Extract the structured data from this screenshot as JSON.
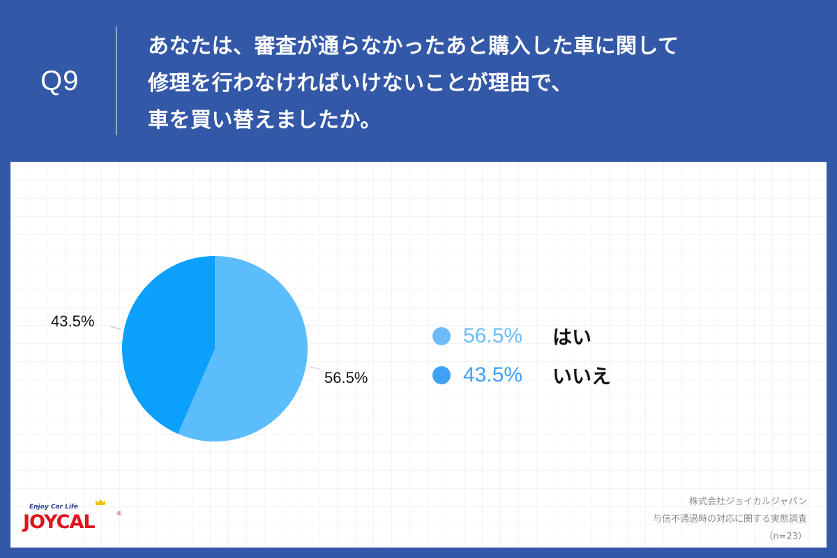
{
  "header": {
    "question_number": "Q9",
    "question_lines": [
      "あなたは、審査が通らなかったあと購入した車に関して",
      "修理を行わなければいけないことが理由で、",
      "車を買い替えましたか。"
    ]
  },
  "chart_data": {
    "type": "pie",
    "title": "あなたは、審査が通らなかったあと購入した車に関して修理を行わなければいけないことが理由で、車を買い替えましたか。",
    "categories": [
      "はい",
      "いいえ"
    ],
    "values": [
      56.5,
      43.5
    ],
    "unit": "%",
    "colors": [
      "#5bbdfb",
      "#0aa0fc"
    ],
    "start_angle": "12 o'clock, clockwise",
    "data_labels": [
      "56.5%",
      "43.5%"
    ],
    "legend_position": "right",
    "n": 23
  },
  "pie_labels": {
    "yes": "56.5%",
    "no": "43.5%"
  },
  "legend": [
    {
      "pct": "56.5%",
      "label": "はい",
      "dot_color": "#6cbcf8",
      "pct_color": "#6cbcf8"
    },
    {
      "pct": "43.5%",
      "label": "いいえ",
      "dot_color": "#3fa0f5",
      "pct_color": "#3fa0f5"
    }
  ],
  "logo": {
    "tagline": "Enjoy Car Life",
    "wordmark": "JOYCAL",
    "registered": "®"
  },
  "credit": {
    "company": "株式会社ジョイカルジャパン",
    "survey": "与信不通過時の対応に関する実態調査",
    "sample": "（n=23）"
  },
  "colors": {
    "background": "#3358a8",
    "panel": "#ffffff",
    "slice_yes": "#5bbdfb",
    "slice_no": "#0aa0fc",
    "logo_red": "#e0141e"
  }
}
